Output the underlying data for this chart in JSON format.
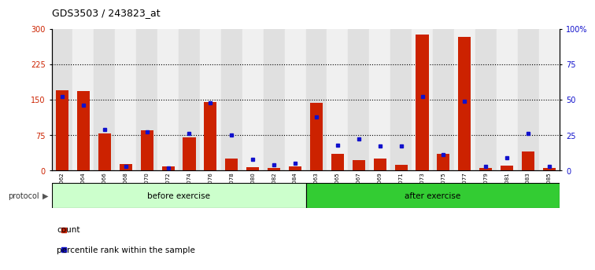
{
  "title": "GDS3503 / 243823_at",
  "categories": [
    "GSM306062",
    "GSM306064",
    "GSM306066",
    "GSM306068",
    "GSM306070",
    "GSM306072",
    "GSM306074",
    "GSM306076",
    "GSM306078",
    "GSM306080",
    "GSM306082",
    "GSM306084",
    "GSM306063",
    "GSM306065",
    "GSM306067",
    "GSM306069",
    "GSM306071",
    "GSM306073",
    "GSM306075",
    "GSM306077",
    "GSM306079",
    "GSM306081",
    "GSM306083",
    "GSM306085"
  ],
  "count_values": [
    170,
    168,
    78,
    13,
    85,
    8,
    70,
    145,
    25,
    7,
    5,
    8,
    143,
    35,
    22,
    25,
    12,
    287,
    35,
    283,
    5,
    10,
    40,
    5
  ],
  "percentile_values": [
    52,
    46,
    29,
    3,
    27,
    2,
    26,
    48,
    25,
    8,
    4,
    5,
    38,
    18,
    22,
    17,
    17,
    52,
    11,
    49,
    3,
    9,
    26,
    3
  ],
  "bar_color": "#cc2200",
  "square_color": "#1111cc",
  "before_exercise_count": 12,
  "after_exercise_count": 12,
  "before_color": "#ccffcc",
  "after_color": "#33cc33",
  "left_axis_color": "#cc2200",
  "right_axis_color": "#1111cc",
  "left_yticks": [
    0,
    75,
    150,
    225,
    300
  ],
  "right_yticks": [
    0,
    25,
    50,
    75,
    100
  ],
  "right_ytick_labels": [
    "0",
    "25",
    "50",
    "75",
    "100%"
  ],
  "ylim_left": [
    0,
    300
  ],
  "ylim_right": [
    0,
    100
  ],
  "title_fontsize": 9,
  "legend_items": [
    "count",
    "percentile rank within the sample"
  ],
  "col_bg_even": "#e0e0e0",
  "col_bg_odd": "#f0f0f0"
}
